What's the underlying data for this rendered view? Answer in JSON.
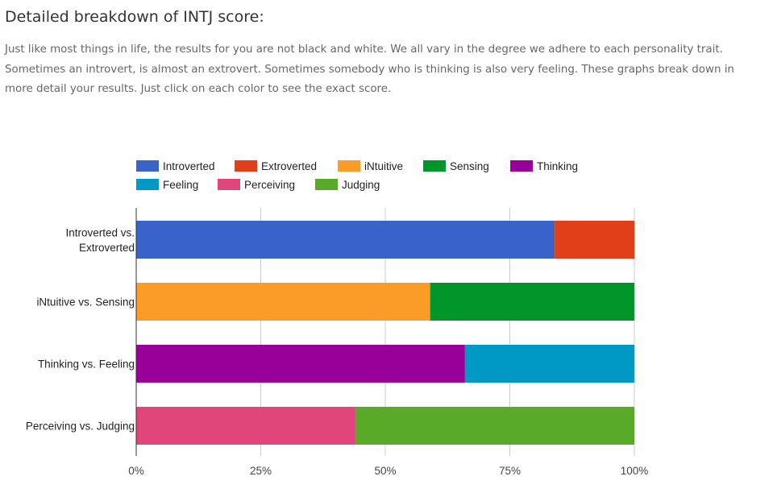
{
  "page": {
    "title": "Detailed breakdown of INTJ score:",
    "description": "Just like most things in life, the results for you are not black and white. We all vary in the degree we adhere to each personality trait. Sometimes an introvert, is almost an extrovert. Sometimes somebody who is thinking is also very feeling. These graphs break down in more detail your results. Just click on each color to see the exact score."
  },
  "chart_data": {
    "type": "bar",
    "orientation": "horizontal",
    "stacked": true,
    "categories": [
      "Introverted vs. Extroverted",
      "iNtuitive vs. Sensing",
      "Thinking vs. Feeling",
      "Perceiving vs. Judging"
    ],
    "category_lines": [
      [
        "Introverted vs.",
        "Extroverted"
      ],
      [
        "iNtuitive vs. Sensing"
      ],
      [
        "Thinking vs. Feeling"
      ],
      [
        "Perceiving vs. Judging"
      ]
    ],
    "series": [
      {
        "name": "Introverted",
        "color": "#3a63c9",
        "values": [
          84,
          0,
          0,
          0
        ]
      },
      {
        "name": "Extroverted",
        "color": "#e03f1a",
        "values": [
          16,
          0,
          0,
          0
        ]
      },
      {
        "name": "iNtuitive",
        "color": "#fc9c28",
        "values": [
          0,
          59,
          0,
          0
        ]
      },
      {
        "name": "Sensing",
        "color": "#00962a",
        "values": [
          0,
          41,
          0,
          0
        ]
      },
      {
        "name": "Thinking",
        "color": "#990099",
        "values": [
          0,
          0,
          66,
          0
        ]
      },
      {
        "name": "Feeling",
        "color": "#0099c6",
        "values": [
          0,
          0,
          34,
          0
        ]
      },
      {
        "name": "Perceiving",
        "color": "#e0467a",
        "values": [
          0,
          0,
          0,
          44
        ]
      },
      {
        "name": "Judging",
        "color": "#5aaa2a",
        "values": [
          0,
          0,
          0,
          56
        ]
      }
    ],
    "xlim": [
      0,
      100
    ],
    "x_ticks": [
      0,
      25,
      50,
      75,
      100
    ],
    "x_tick_labels": [
      "0%",
      "25%",
      "50%",
      "75%",
      "100%"
    ],
    "legend_position": "top",
    "grid": true
  }
}
